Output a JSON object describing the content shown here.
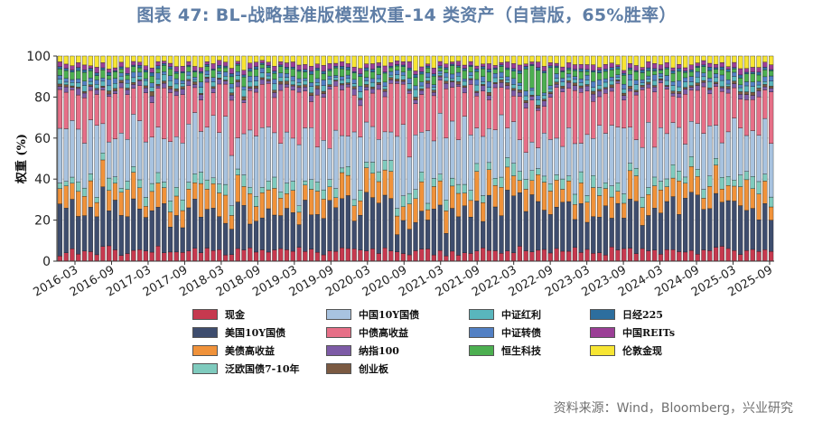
{
  "title": "图表 47: BL-战略基准版模型权重-14 类资产（自营版，65%胜率）",
  "source": "资料来源：Wind，Bloomberg，兴业研究",
  "chart_data": {
    "type": "stacked_bar",
    "title": "图表 47: BL-战略基准版模型权重-14 类资产（自营版，65%胜率）",
    "ylabel": "权重 (%)",
    "ylim": [
      0,
      100
    ],
    "yticks": [
      0,
      20,
      40,
      60,
      80,
      100
    ],
    "xtick_labels": [
      "2016-03",
      "2016-09",
      "2017-03",
      "2017-09",
      "2018-03",
      "2018-09",
      "2019-03",
      "2019-09",
      "2020-03",
      "2020-09",
      "2021-03",
      "2021-09",
      "2022-03",
      "2022-09",
      "2023-03",
      "2023-09",
      "2024-03",
      "2024-09",
      "2025-03",
      "2025-09"
    ],
    "num_bars": 117,
    "bar_interval": "biweekly (approx.)",
    "series": [
      {
        "name": "现金",
        "color": "#c6394f",
        "typical_value": 5
      },
      {
        "name": "美国10Y国债",
        "color": "#3e4d6e",
        "typical_value": 20
      },
      {
        "name": "美债高收益",
        "color": "#f0923a",
        "typical_value": 10
      },
      {
        "name": "泛欧国债7-10年",
        "color": "#7fcbbe",
        "typical_value": 4
      },
      {
        "name": "中国10Y国债",
        "color": "#a8c3e0",
        "typical_value": 24
      },
      {
        "name": "中债高收益",
        "color": "#e66f87",
        "typical_value": 20
      },
      {
        "name": "纳指100",
        "color": "#7d5ba6",
        "typical_value": 2
      },
      {
        "name": "创业板",
        "color": "#7b5a42",
        "typical_value": 1
      },
      {
        "name": "中证红利",
        "color": "#59b6bd",
        "typical_value": 2
      },
      {
        "name": "中证转债",
        "color": "#5280c4",
        "typical_value": 2
      },
      {
        "name": "恒生科技",
        "color": "#4caf50",
        "typical_value": 3
      },
      {
        "name": "日经225",
        "color": "#2d6e9e",
        "typical_value": 1
      },
      {
        "name": "中国REITs",
        "color": "#9b3f96",
        "typical_value": 2
      },
      {
        "name": "伦敦金现",
        "color": "#f7e533",
        "typical_value": 4
      }
    ]
  }
}
